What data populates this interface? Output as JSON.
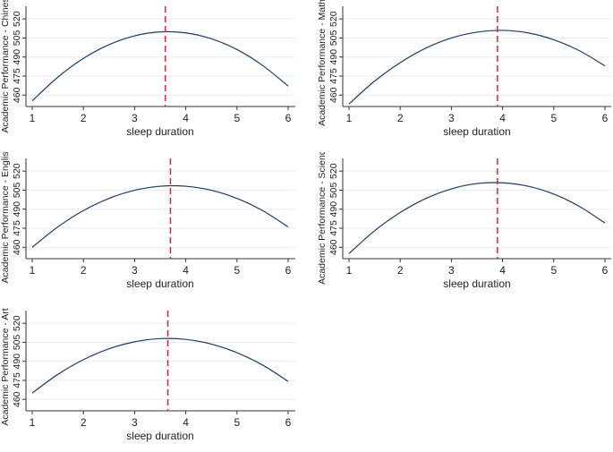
{
  "chart_data": [
    {
      "type": "line",
      "ylabel": "Academic Performance - Chinese",
      "xlabel": "sleep duration",
      "x": [
        1,
        1.5,
        2,
        2.5,
        3,
        3.5,
        4,
        4.5,
        5,
        5.5,
        6
      ],
      "y": [
        455.5,
        474.1,
        488.9,
        499.7,
        506.7,
        509.8,
        509.0,
        504.4,
        495.9,
        483.4,
        467.1
      ],
      "vline": 3.6,
      "xticks": [
        1,
        2,
        3,
        4,
        5,
        6
      ],
      "yticks": [
        460,
        475,
        490,
        505,
        520
      ],
      "xlim": [
        1,
        6
      ],
      "ylim": [
        451,
        530
      ]
    },
    {
      "type": "line",
      "ylabel": "Academic Performance - Math",
      "xlabel": "sleep duration",
      "x": [
        1,
        1.5,
        2,
        2.5,
        3,
        3.5,
        4,
        4.5,
        5,
        5.5,
        6
      ],
      "y": [
        453.0,
        471.0,
        485.6,
        497.0,
        505.0,
        509.6,
        511.0,
        509.0,
        503.6,
        495.0,
        483.0
      ],
      "vline": 3.9,
      "xticks": [
        1,
        2,
        3,
        4,
        5,
        6
      ],
      "yticks": [
        460,
        475,
        490,
        505,
        520
      ],
      "xlim": [
        1,
        6
      ],
      "ylim": [
        451,
        530
      ]
    },
    {
      "type": "line",
      "ylabel": "Academic Performance - English",
      "xlabel": "sleep duration",
      "x": [
        1,
        1.5,
        2,
        2.5,
        3,
        3.5,
        4,
        4.5,
        5,
        5.5,
        6
      ],
      "y": [
        460.0,
        476.0,
        488.9,
        498.5,
        504.9,
        508.1,
        508.1,
        504.9,
        498.5,
        488.9,
        476.0
      ],
      "vline": 3.7,
      "xticks": [
        1,
        2,
        3,
        4,
        5,
        6
      ],
      "yticks": [
        460,
        475,
        490,
        505,
        520
      ],
      "xlim": [
        1,
        6
      ],
      "ylim": [
        451,
        530
      ]
    },
    {
      "type": "line",
      "ylabel": "Academic Performance - Science",
      "xlabel": "sleep duration",
      "x": [
        1,
        1.5,
        2,
        2.5,
        3,
        3.5,
        4,
        4.5,
        5,
        5.5,
        6
      ],
      "y": [
        455.0,
        473.0,
        487.4,
        498.4,
        506.0,
        510.2,
        510.8,
        508.1,
        501.9,
        492.2,
        479.1
      ],
      "vline": 3.9,
      "xticks": [
        1,
        2,
        3,
        4,
        5,
        6
      ],
      "yticks": [
        460,
        475,
        490,
        505,
        520
      ],
      "xlim": [
        1,
        6
      ],
      "ylim": [
        451,
        530
      ]
    },
    {
      "type": "line",
      "ylabel": "Academic Performance - Art",
      "xlabel": "sleep duration",
      "x": [
        1,
        1.5,
        2,
        2.5,
        3,
        3.5,
        4,
        4.5,
        5,
        5.5,
        6
      ],
      "y": [
        465.0,
        479.7,
        491.3,
        499.9,
        505.4,
        507.9,
        507.3,
        503.6,
        496.8,
        487.1,
        474.2
      ],
      "vline": 3.65,
      "xticks": [
        1,
        2,
        3,
        4,
        5,
        6
      ],
      "yticks": [
        460,
        475,
        490,
        505,
        520
      ],
      "xlim": [
        1,
        6
      ],
      "ylim": [
        451,
        530
      ]
    }
  ],
  "colors": {
    "curve": "#1f3b66",
    "vline": "#d62839",
    "grid": "#e6eef2",
    "axis": "#333333"
  }
}
